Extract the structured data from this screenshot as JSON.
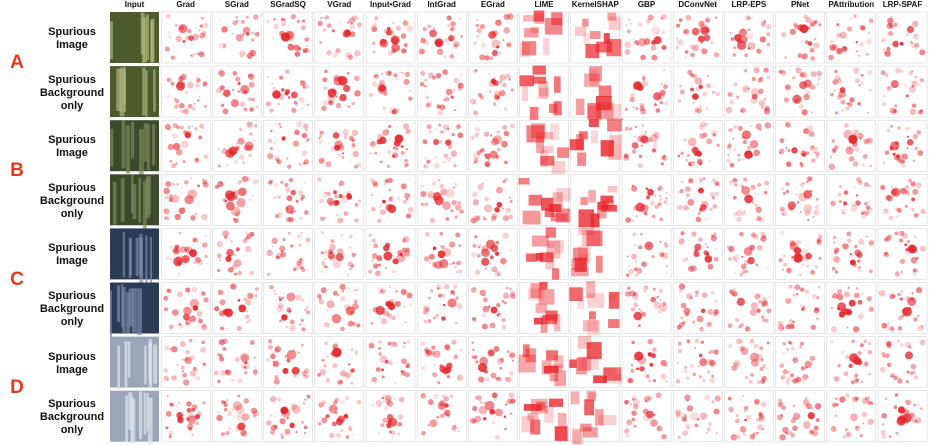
{
  "header": {
    "columns": [
      "Input",
      "Grad",
      "SGrad",
      "SGradSQ",
      "VGrad",
      "Input•Grad",
      "IntGrad",
      "EGrad",
      "LIME",
      "KernelSHAP",
      "GBP",
      "DConvNet",
      "LRP-EPS",
      "PNet",
      "PAttribution",
      "LRP-SPAF"
    ]
  },
  "groups": [
    {
      "letter": "A",
      "rows": [
        "Spurious Image",
        "Spurious Background only"
      ]
    },
    {
      "letter": "B",
      "rows": [
        "Spurious Image",
        "Spurious Background only"
      ]
    },
    {
      "letter": "C",
      "rows": [
        "Spurious Image",
        "Spurious Background only"
      ]
    },
    {
      "letter": "D",
      "rows": [
        "Spurious Image",
        "Spurious Background only"
      ]
    }
  ]
}
